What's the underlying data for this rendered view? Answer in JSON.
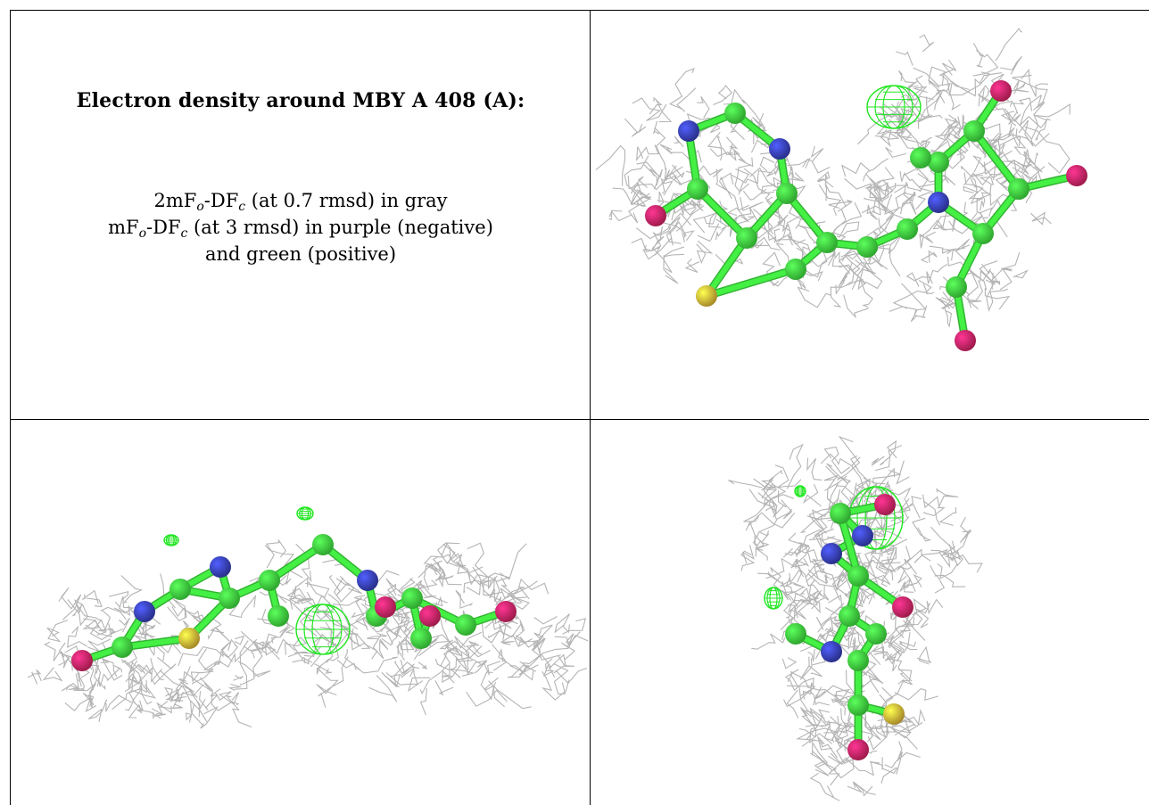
{
  "title": "Electron density around MBY A 408 (A):",
  "legend": {
    "line1": {
      "prefix": "2mF",
      "sub1": "o",
      "mid": "-DF",
      "sub2": "c",
      "suffix": " (at 0.7 rmsd) in gray"
    },
    "line2": {
      "prefix": "mF",
      "sub1": "o",
      "mid": "-DF",
      "sub2": "c",
      "suffix": " (at 3 rmsd) in purple (negative)"
    },
    "line3": "and green (positive)"
  },
  "colors": {
    "mesh_gray": "#b4b4b4",
    "carbon": "#44f044",
    "nitrogen": "#3c46c8",
    "oxygen": "#e6286e",
    "sulfur": "#f0c83c",
    "positive_density": "#22e622"
  },
  "panels": [
    "view-top-right",
    "view-bottom-left",
    "view-bottom-right"
  ]
}
